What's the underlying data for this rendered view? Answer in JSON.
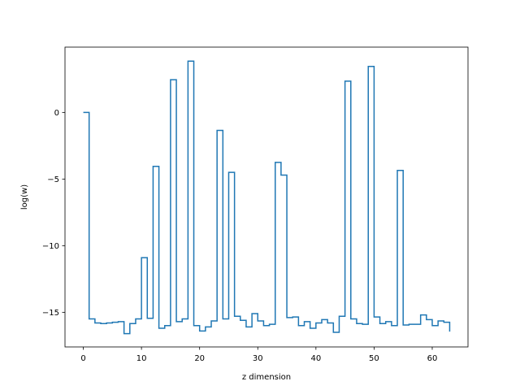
{
  "chart_data": {
    "type": "line",
    "drawstyle": "steps-post",
    "title": "",
    "xlabel": "z dimension",
    "ylabel": "log(w)",
    "xlim": [
      -3.15,
      66.15
    ],
    "ylim": [
      -17.6,
      4.9
    ],
    "xticks": [
      0,
      10,
      20,
      30,
      40,
      50,
      60
    ],
    "yticks": [
      0,
      -5,
      -10,
      -15
    ],
    "grid": false,
    "legend": "none",
    "series": [
      {
        "color": "#1f77b4",
        "x": [
          0,
          1,
          2,
          3,
          4,
          5,
          6,
          7,
          8,
          9,
          10,
          11,
          12,
          13,
          14,
          15,
          16,
          17,
          18,
          19,
          20,
          21,
          22,
          23,
          24,
          25,
          26,
          27,
          28,
          29,
          30,
          31,
          32,
          33,
          34,
          35,
          36,
          37,
          38,
          39,
          40,
          41,
          42,
          43,
          44,
          45,
          46,
          47,
          48,
          49,
          50,
          51,
          52,
          53,
          54,
          55,
          56,
          57,
          58,
          59,
          60,
          61,
          62,
          63
        ],
        "y": [
          0.0,
          -15.5,
          -15.8,
          -15.85,
          -15.8,
          -15.75,
          -15.7,
          -16.6,
          -15.85,
          -15.5,
          -10.9,
          -15.45,
          -4.05,
          -16.2,
          -16.0,
          2.45,
          -15.7,
          -15.5,
          3.85,
          -16.0,
          -16.4,
          -16.1,
          -15.65,
          -1.35,
          -15.5,
          -4.5,
          -15.3,
          -15.6,
          -16.1,
          -15.1,
          -15.65,
          -16.0,
          -15.9,
          -3.75,
          -4.7,
          -15.4,
          -15.35,
          -16.0,
          -15.7,
          -16.2,
          -15.8,
          -15.55,
          -15.8,
          -16.5,
          -15.3,
          2.35,
          -15.5,
          -15.85,
          -15.9,
          3.45,
          -15.35,
          -15.85,
          -15.7,
          -16.0,
          -4.35,
          -15.95,
          -15.9,
          -15.9,
          -15.2,
          -15.55,
          -16.0,
          -15.65,
          -15.75,
          -16.45
        ]
      }
    ]
  }
}
